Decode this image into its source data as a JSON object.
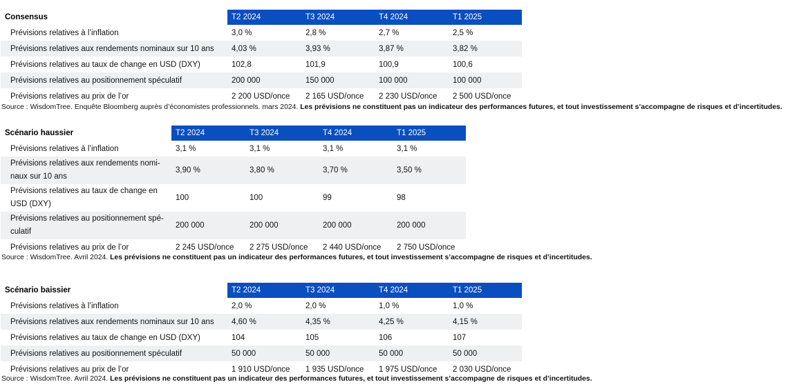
{
  "consensus": {
    "title": "Consensus",
    "columns": [
      "T2 2024",
      "T3 2024",
      "T4 2024",
      "T1 2025"
    ],
    "rows": [
      {
        "label": "Prévisions relatives à l’inflation",
        "values": [
          "3,0 %",
          "2,8 %",
          "2,7 %",
          "2,5 %"
        ]
      },
      {
        "label": "Prévisions relatives aux rendements nominaux sur 10 ans",
        "values": [
          "4,03 %",
          "3,93 %",
          "3,87 %",
          "3,82 %"
        ]
      },
      {
        "label": "Prévisions relatives au taux de change en USD (DXY)",
        "values": [
          "102,8",
          "101,9",
          "100,9",
          "100,6"
        ]
      },
      {
        "label": "Prévisions relatives au positionnement spéculatif",
        "values": [
          "200 000",
          "150 000",
          "100 000",
          "100 000"
        ]
      },
      {
        "label": "Prévisions relatives au prix de l’or",
        "values": [
          "2 200 USD/once",
          "2 165 USD/once",
          "2 230 USD/once",
          "2 500 USD/once"
        ]
      }
    ],
    "source": "Source : WisdomTree. Enquête Bloomberg auprès d’économistes professionnels. mars 2024. ",
    "disclaimer": "Les prévisions ne constituent pas un indicateur des performances futures, et tout investissement s’accompagne de risques et d’incertitudes."
  },
  "bull": {
    "title": "Scénario haussier",
    "columns": [
      "T2 2024",
      "T3 2024",
      "T4 2024",
      "T1 2025"
    ],
    "rows": [
      {
        "label": "Prévisions relatives à l’inflation",
        "values": [
          "3,1 %",
          "3,1 %",
          "3,1 %",
          "3,1 %"
        ]
      },
      {
        "label": "Prévisions relatives aux rendements nomi-naux sur 10 ans",
        "values": [
          "3,90 %",
          "3,80 %",
          "3,70 %",
          "3,50 %"
        ]
      },
      {
        "label": "Prévisions relatives au taux de change en USD (DXY)",
        "values": [
          "100",
          "100",
          "99",
          "98"
        ]
      },
      {
        "label": "Prévisions relatives au positionnement spé-culatif",
        "values": [
          "200 000",
          "200 000",
          "200 000",
          "200 000"
        ]
      },
      {
        "label": "Prévisions relatives au prix de l’or",
        "values": [
          "2 245 USD/once",
          "2 275 USD/once",
          "2 440 USD/once",
          "2 750 USD/once"
        ]
      }
    ],
    "source": "Source : WisdomTree. Avril 2024. ",
    "disclaimer": "Les prévisions ne constituent pas un indicateur des performances futures, et tout investissement s’accompagne de risques et d’incertitudes."
  },
  "bear": {
    "title": "Scénario baissier",
    "columns": [
      "T2 2024",
      "T3 2024",
      "T4 2024",
      "T1 2025"
    ],
    "rows": [
      {
        "label": "Prévisions relatives à l’inflation",
        "values": [
          "2,0 %",
          "2,0 %",
          "1,0 %",
          "1,0 %"
        ]
      },
      {
        "label": "Prévisions relatives aux rendements nominaux sur 10 ans",
        "values": [
          "4,60 %",
          "4,35 %",
          "4,25 %",
          "4,15 %"
        ]
      },
      {
        "label": "Prévisions relatives au taux de change en USD (DXY)",
        "values": [
          "104",
          "105",
          "106",
          "107"
        ]
      },
      {
        "label": "Prévisions relatives au positionnement spéculatif",
        "values": [
          "50 000",
          "50 000",
          "50 000",
          "50 000"
        ]
      },
      {
        "label": "Prévisions relatives au prix de l’or",
        "values": [
          "1 910 USD/once",
          "1 935 USD/once",
          "1 975 USD/once",
          "2 030 USD/once"
        ]
      }
    ],
    "source": "Source : WisdomTree. Avril 2024. ",
    "disclaimer": "Les prévisions ne constituent pas un indicateur des performances futures, et tout investissement s’accompagne de risques et d’incertitudes."
  },
  "colors": {
    "header_bg": "#0a4fbf",
    "header_text": "#ffffff",
    "stripe": "#eef0f2"
  }
}
